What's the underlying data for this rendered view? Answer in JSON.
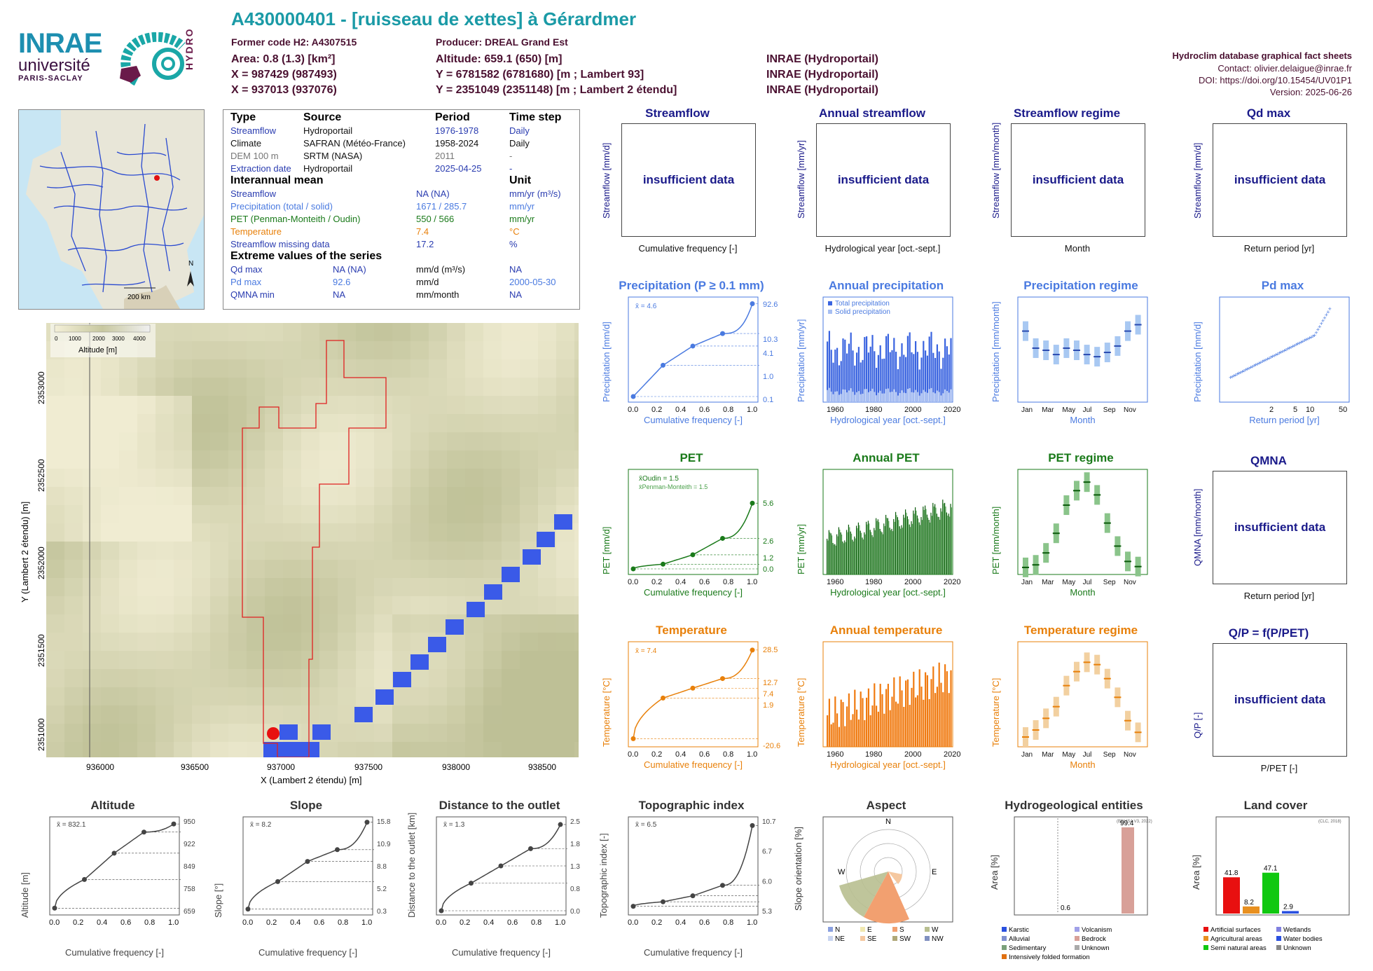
{
  "header": {
    "title": "A430000401 - [ruisseau de xettes] à Gérardmer",
    "former_code": "Former code H2: A4307515",
    "producer": "Producer: DREAL Grand Est",
    "area": "Area: 0.8 (1.3) [km²]",
    "x93": "X = 987429 (987493)",
    "x2": "X = 937013 (937076)",
    "altitude": "Altitude: 659.1 (650) [m]",
    "y93": "Y = 6781582 (6781680) [m ; Lambert 93]",
    "y2": "Y = 2351049 (2351148) [m ; Lambert 2 étendu]",
    "src1": "INRAE (Hydroportail)",
    "src2": "INRAE (Hydroportail)",
    "src3": "INRAE (Hydroportail)",
    "right1": "Hydroclim database graphical fact sheets",
    "right2": "Contact: olivier.delaigue@inrae.fr",
    "right3": "DOI: https://doi.org/10.15454/UV01P1",
    "right4": "Version: 2025-06-26"
  },
  "logos": {
    "inrae": "INRAE",
    "universite": "université",
    "paris_saclay": "PARIS-SACLAY",
    "hydro": "HYDRO"
  },
  "minimap": {
    "scale": "200 km",
    "north": "N"
  },
  "info": {
    "h_type": "Type",
    "h_source": "Source",
    "h_period": "Period",
    "h_step": "Time step",
    "rows": [
      {
        "type": "Streamflow",
        "source": "Hydroportail",
        "period": "1976-1978",
        "step": "Daily",
        "color": "#2a3cb0"
      },
      {
        "type": "Climate",
        "source": "SAFRAN (Météo-France)",
        "period": "1958-2024",
        "step": "Daily",
        "color": "#111111"
      },
      {
        "type": "DEM 100 m",
        "source": "SRTM (NASA)",
        "period": "2011",
        "step": "-",
        "color": "#777777"
      },
      {
        "type": "Extraction date",
        "source": "Hydroportail",
        "period": "2025-04-25",
        "step": "-",
        "color": "#2a3cb0"
      }
    ],
    "h_interannual": "Interannual mean",
    "h_unit": "Unit",
    "means": [
      {
        "label": "Streamflow",
        "value": "NA (NA)",
        "unit": "mm/yr (m³/s)",
        "color": "#2a3cb0"
      },
      {
        "label": "Precipitation (total / solid)",
        "value": "1671 / 285.7",
        "unit": "mm/yr",
        "color": "#4a7ae0"
      },
      {
        "label": "PET (Penman-Monteith / Oudin)",
        "value": "550 / 566",
        "unit": "mm/yr",
        "color": "#1a7a1a"
      },
      {
        "label": "Temperature",
        "value": "7.4",
        "unit": "°C",
        "color": "#e8800a"
      },
      {
        "label": "Streamflow missing data",
        "value": "17.2",
        "unit": "%",
        "color": "#2a3cb0"
      }
    ],
    "h_extreme": "Extreme values of the series",
    "extremes": [
      {
        "label": "Qd max",
        "value": "NA (NA)",
        "unit": "mm/d (m³/s)",
        "date": "NA",
        "color": "#2a3cb0"
      },
      {
        "label": "Pd max",
        "value": "92.6",
        "unit": "mm/d",
        "date": "2000-05-30",
        "color": "#4a7ae0"
      },
      {
        "label": "QMNA min",
        "value": "NA",
        "unit": "mm/month",
        "date": "NA",
        "color": "#2a3cb0"
      }
    ]
  },
  "dem": {
    "legend_ticks": [
      "0",
      "1000",
      "2000",
      "3000",
      "4000"
    ],
    "legend_label": "Altitude [m]",
    "xlabel": "X (Lambert 2 étendu) [m]",
    "ylabel": "Y (Lambert 2 étendu) [m]",
    "xticks": [
      "936000",
      "936500",
      "937000",
      "937500",
      "938000",
      "938500"
    ],
    "yticks": [
      "2351000",
      "2351500",
      "2352000",
      "2352500",
      "2353000"
    ]
  },
  "insufficient_text": "insufficient data",
  "q_panels": [
    {
      "title": "Streamflow",
      "ylabel": "Streamflow [mm/d]",
      "xlabel": "Cumulative frequency [-]"
    },
    {
      "title": "Annual streamflow",
      "ylabel": "Streamflow [mm/yr]",
      "xlabel": "Hydrological year [oct.-sept.]"
    },
    {
      "title": "Streamflow regime",
      "ylabel": "Streamflow [mm/month]",
      "xlabel": "Month"
    },
    {
      "title": "Qd max",
      "ylabel": "Streamflow [mm/d]",
      "xlabel": "Return period [yr]"
    }
  ],
  "qmna": {
    "title": "QMNA",
    "ylabel": "QMNA [mm/month]",
    "xlabel": "Return period [yr]"
  },
  "qp": {
    "title": "Q/P = f(P/PET)",
    "ylabel": "Q/P [-]",
    "xlabel": "P/PET [-]"
  },
  "precip": {
    "title": "Precipitation (P ≥ 0.1 mm)",
    "annual_title": "Annual precipitation",
    "regime_title": "Precipitation regime",
    "max_title": "Pd max",
    "ylabel": "Precipitation [mm/d]",
    "annual_ylabel": "Precipitation [mm/yr]",
    "regime_ylabel": "Precipitation [mm/month]",
    "max_ylabel": "Precipitation [mm/d]",
    "mean_label": "x̄ = 4.6",
    "legend_total": "Total precipitation",
    "legend_solid": "Solid precipitation",
    "right_ticks": [
      "92.6",
      "10.3",
      "4.1",
      "1.0",
      "0.1"
    ],
    "max_xticks": [
      "2",
      "5",
      "10",
      "50"
    ]
  },
  "pet": {
    "title": "PET",
    "annual_title": "Annual PET",
    "regime_title": "PET regime",
    "ylabel": "PET [mm/d]",
    "annual_ylabel": "PET [mm/yr]",
    "regime_ylabel": "PET [mm/month]",
    "legend_oudin": "x̄Oudin = 1.5",
    "legend_pm": "x̄Penman-Monteith = 1.5",
    "right_ticks": [
      "5.6",
      "2.6",
      "1.2",
      "0.0"
    ]
  },
  "temp": {
    "title": "Temperature",
    "annual_title": "Annual temperature",
    "regime_title": "Temperature regime",
    "ylabel": "Temperature [°C]",
    "annual_ylabel": "Temperature [°C]",
    "regime_ylabel": "Temperature [°C]",
    "mean_label": "x̄ = 7.4",
    "right_ticks": [
      "28.5",
      "12.7",
      "7.4",
      "1.9",
      "-20.6"
    ]
  },
  "common": {
    "cumfreq": "Cumulative frequency [-]",
    "hydroyear": "Hydrological year [oct.-sept.]",
    "month": "Month",
    "return": "Return period [yr]",
    "freq_ticks": [
      "0.0",
      "0.2",
      "0.4",
      "0.6",
      "0.8",
      "1.0"
    ],
    "year_ticks": [
      "1960",
      "1980",
      "2000",
      "2020"
    ],
    "month_ticks": [
      "Jan",
      "Mar",
      "May",
      "Jul",
      "Sep",
      "Nov"
    ]
  },
  "topo": [
    {
      "title": "Altitude",
      "ylabel": "Altitude [m]",
      "mean": "x̄ = 832.1",
      "right": [
        "950",
        "922",
        "849",
        "758",
        "659"
      ]
    },
    {
      "title": "Slope",
      "ylabel": "Slope [°]",
      "mean": "x̄ = 8.2",
      "right": [
        "15.8",
        "10.9",
        "8.8",
        "5.2",
        "0.3"
      ]
    },
    {
      "title": "Distance to the outlet",
      "ylabel": "Distance to the outlet [km]",
      "mean": "x̄ = 1.3",
      "right": [
        "2.5",
        "1.8",
        "1.3",
        "0.8",
        "0.0"
      ]
    },
    {
      "title": "Topographic index",
      "ylabel": "Topographic index [-]",
      "mean": "x̄ = 6.5",
      "right": [
        "10.7",
        "6.7",
        "6.0",
        "5.3"
      ]
    }
  ],
  "aspect": {
    "title": "Aspect",
    "ylabel": "Slope orientation [%]",
    "legend": [
      "N",
      "E",
      "S",
      "W",
      "NE",
      "SE",
      "SW",
      "NW"
    ]
  },
  "hydrogeo": {
    "title": "Hydrogeological entities",
    "source": "(BDLISA V3, 2022)",
    "ylabel": "Area [%]",
    "legend": [
      "Karstic",
      "Volcanism",
      "Alluvial",
      "Bedrock",
      "Sedimentary",
      "Unknown",
      "Intensively folded formation"
    ]
  },
  "landcover": {
    "title": "Land cover",
    "source": "(CLC, 2018)",
    "ylabel": "Area [%]",
    "legend": [
      "Artificial surfaces",
      "Wetlands",
      "Agricultural areas",
      "Water bodies",
      "Semi natural areas",
      "Unknown"
    ]
  },
  "chart_data": [
    {
      "type": "bar",
      "name": "hydrogeo",
      "categories": [
        "Karstic",
        "Volcanism",
        "Alluvial",
        "Bedrock",
        "Sedimentary",
        "Unknown",
        "Intensively folded formation"
      ],
      "values": [
        0,
        0,
        0,
        99.4,
        0,
        0,
        0.6
      ],
      "ylim": [
        0,
        100
      ],
      "labels": [
        "0.6",
        "99.4"
      ]
    },
    {
      "type": "bar",
      "name": "landcover",
      "categories": [
        "Artificial surfaces",
        "Agricultural areas",
        "Semi natural areas",
        "Wetlands",
        "Water bodies",
        "Unknown"
      ],
      "values": [
        41.8,
        8.2,
        47.1,
        0,
        2.9,
        0
      ],
      "ylim": [
        0,
        100
      ],
      "colors": [
        "#e81010",
        "#e89020",
        "#10c810",
        "#8080e0",
        "#2a50e0",
        "#888888"
      ],
      "labels": [
        "41.8",
        "8.2",
        "47.1",
        "2.9"
      ]
    },
    {
      "type": "line",
      "name": "precip-cumfreq",
      "x": [
        0,
        0.25,
        0.5,
        0.75,
        1
      ],
      "y": [
        0.1,
        1.0,
        4.1,
        10.3,
        92.6
      ],
      "ylim": [
        0.1,
        100
      ],
      "log_y": true
    },
    {
      "type": "line",
      "name": "pet-cumfreq",
      "x": [
        0,
        0.25,
        0.5,
        0.75,
        1
      ],
      "y": [
        0.0,
        0.4,
        1.2,
        2.6,
        5.6
      ],
      "ylim": [
        0,
        8
      ]
    },
    {
      "type": "line",
      "name": "temp-cumfreq",
      "x": [
        0,
        0.25,
        0.5,
        0.75,
        1
      ],
      "y": [
        -20.6,
        1.9,
        7.4,
        12.7,
        28.5
      ],
      "ylim": [
        -22,
        30
      ]
    },
    {
      "type": "line",
      "name": "altitude-cumfreq",
      "x": [
        0,
        0.25,
        0.5,
        0.75,
        1
      ],
      "y": [
        659,
        758,
        849,
        922,
        950
      ],
      "ylim": [
        650,
        960
      ]
    },
    {
      "type": "line",
      "name": "slope-cumfreq",
      "x": [
        0,
        0.25,
        0.5,
        0.75,
        1
      ],
      "y": [
        0.3,
        5.2,
        8.8,
        10.9,
        15.8
      ],
      "ylim": [
        0,
        16
      ]
    },
    {
      "type": "line",
      "name": "distance-cumfreq",
      "x": [
        0,
        0.25,
        0.5,
        0.75,
        1
      ],
      "y": [
        0.0,
        0.8,
        1.3,
        1.8,
        2.5
      ],
      "ylim": [
        0,
        2.6
      ]
    },
    {
      "type": "line",
      "name": "topoidx-cumfreq",
      "x": [
        0,
        0.25,
        0.5,
        0.75,
        1
      ],
      "y": [
        5.3,
        5.6,
        6.0,
        6.7,
        10.7
      ],
      "ylim": [
        5,
        11
      ]
    },
    {
      "type": "bar",
      "name": "precip-regime",
      "categories": [
        "Jan",
        "Feb",
        "Mar",
        "Apr",
        "May",
        "Jun",
        "Jul",
        "Aug",
        "Sep",
        "Oct",
        "Nov",
        "Dec"
      ],
      "values": [
        160,
        120,
        115,
        105,
        120,
        115,
        105,
        100,
        110,
        125,
        160,
        175
      ],
      "ylim": [
        0,
        230
      ]
    },
    {
      "type": "bar",
      "name": "pet-regime",
      "categories": [
        "Jan",
        "Feb",
        "Mar",
        "Apr",
        "May",
        "Jun",
        "Jul",
        "Aug",
        "Sep",
        "Oct",
        "Nov",
        "Dec"
      ],
      "values": [
        5,
        8,
        22,
        45,
        78,
        95,
        105,
        90,
        57,
        30,
        12,
        6
      ],
      "ylim": [
        0,
        110
      ]
    },
    {
      "type": "bar",
      "name": "temp-regime",
      "categories": [
        "Jan",
        "Feb",
        "Mar",
        "Apr",
        "May",
        "Jun",
        "Jul",
        "Aug",
        "Sep",
        "Oct",
        "Nov",
        "Dec"
      ],
      "values": [
        -0.5,
        1,
        3.5,
        6,
        10.5,
        13.5,
        15.5,
        15,
        12,
        8,
        3,
        0.5
      ],
      "ylim": [
        -2,
        17
      ]
    }
  ]
}
